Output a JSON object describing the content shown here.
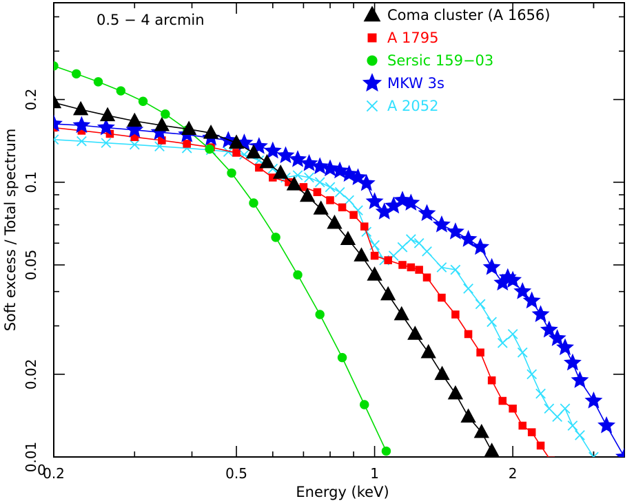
{
  "chart_data": {
    "type": "line",
    "title": "",
    "annotation": "0.5 − 4 arcmin",
    "xlabel": "Energy (keV)",
    "ylabel": "Soft excess / Total spectrum",
    "xscale": "log",
    "yscale": "log",
    "xlim": [
      0.2,
      3.5
    ],
    "ylim": [
      0.01,
      0.45
    ],
    "xticks": [
      {
        "value": 0.2,
        "label": "0.2"
      },
      {
        "value": 0.5,
        "label": "0.5"
      },
      {
        "value": 1,
        "label": "1"
      },
      {
        "value": 2,
        "label": "2"
      }
    ],
    "yticks": [
      {
        "value": 0.01,
        "label": "0.01"
      },
      {
        "value": 0.02,
        "label": "0.02"
      },
      {
        "value": 0.05,
        "label": "0.05"
      },
      {
        "value": 0.1,
        "label": "0.1"
      },
      {
        "value": 0.2,
        "label": "0.2"
      }
    ],
    "corner_label": "0",
    "legend_position": "top-right",
    "series": [
      {
        "name": "Coma cluster (A 1656)",
        "color": "#000000",
        "marker": "triangle",
        "x": [
          0.2,
          0.229,
          0.262,
          0.3,
          0.344,
          0.394,
          0.44,
          0.5,
          0.545,
          0.583,
          0.624,
          0.668,
          0.714,
          0.764,
          0.818,
          0.875,
          0.936,
          1.0,
          1.07,
          1.145,
          1.225,
          1.31,
          1.403,
          1.5,
          1.6,
          1.71,
          1.8
        ],
        "y": [
          0.195,
          0.184,
          0.175,
          0.167,
          0.161,
          0.156,
          0.151,
          0.139,
          0.128,
          0.118,
          0.108,
          0.098,
          0.089,
          0.08,
          0.071,
          0.062,
          0.054,
          0.046,
          0.039,
          0.033,
          0.028,
          0.024,
          0.02,
          0.017,
          0.014,
          0.0123,
          0.0105
        ]
      },
      {
        "name": "A 1795",
        "color": "#ff0000",
        "marker": "square",
        "x": [
          0.2,
          0.23,
          0.265,
          0.3,
          0.344,
          0.39,
          0.44,
          0.5,
          0.56,
          0.6,
          0.65,
          0.7,
          0.75,
          0.8,
          0.85,
          0.9,
          0.95,
          1.0,
          1.07,
          1.15,
          1.2,
          1.25,
          1.3,
          1.4,
          1.5,
          1.6,
          1.7,
          1.8,
          1.9,
          2.0,
          2.1,
          2.2,
          2.3,
          2.42
        ],
        "y": [
          0.158,
          0.154,
          0.15,
          0.146,
          0.142,
          0.138,
          0.134,
          0.128,
          0.113,
          0.104,
          0.1,
          0.096,
          0.092,
          0.086,
          0.081,
          0.076,
          0.069,
          0.054,
          0.052,
          0.05,
          0.049,
          0.048,
          0.045,
          0.038,
          0.033,
          0.028,
          0.024,
          0.019,
          0.016,
          0.015,
          0.013,
          0.0123,
          0.011,
          0.0097
        ]
      },
      {
        "name": "Sersic 159−03",
        "color": "#00dd00",
        "marker": "circle",
        "x": [
          0.2,
          0.224,
          0.25,
          0.28,
          0.313,
          0.35,
          0.391,
          0.437,
          0.488,
          0.545,
          0.609,
          0.68,
          0.76,
          0.85,
          0.95,
          1.06
        ],
        "y": [
          0.265,
          0.248,
          0.232,
          0.215,
          0.197,
          0.177,
          0.155,
          0.132,
          0.108,
          0.084,
          0.063,
          0.046,
          0.033,
          0.023,
          0.0155,
          0.0105
        ]
      },
      {
        "name": "MKW 3s",
        "color": "#0000ee",
        "marker": "star",
        "x": [
          0.2,
          0.23,
          0.26,
          0.3,
          0.34,
          0.39,
          0.44,
          0.48,
          0.52,
          0.56,
          0.6,
          0.64,
          0.68,
          0.72,
          0.76,
          0.8,
          0.84,
          0.88,
          0.92,
          0.96,
          1.0,
          1.05,
          1.1,
          1.15,
          1.2,
          1.3,
          1.4,
          1.5,
          1.6,
          1.7,
          1.8,
          1.9,
          1.95,
          2.0,
          2.1,
          2.2,
          2.3,
          2.4,
          2.5,
          2.6,
          2.7,
          2.8,
          3.0,
          3.2,
          3.5
        ],
        "y": [
          0.163,
          0.161,
          0.158,
          0.155,
          0.152,
          0.149,
          0.145,
          0.142,
          0.139,
          0.135,
          0.13,
          0.125,
          0.121,
          0.117,
          0.114,
          0.112,
          0.11,
          0.107,
          0.104,
          0.099,
          0.085,
          0.078,
          0.082,
          0.086,
          0.084,
          0.077,
          0.07,
          0.066,
          0.062,
          0.058,
          0.049,
          0.043,
          0.045,
          0.044,
          0.04,
          0.037,
          0.033,
          0.029,
          0.027,
          0.025,
          0.022,
          0.019,
          0.016,
          0.013,
          0.01
        ]
      },
      {
        "name": "A 2052",
        "color": "#33e0ff",
        "marker": "cross",
        "x": [
          0.2,
          0.23,
          0.26,
          0.3,
          0.34,
          0.39,
          0.44,
          0.48,
          0.52,
          0.56,
          0.6,
          0.64,
          0.68,
          0.72,
          0.76,
          0.8,
          0.84,
          0.88,
          0.92,
          0.96,
          1.0,
          1.05,
          1.1,
          1.15,
          1.2,
          1.25,
          1.3,
          1.4,
          1.5,
          1.6,
          1.7,
          1.8,
          1.9,
          2.0,
          2.1,
          2.2,
          2.3,
          2.4,
          2.5,
          2.6,
          2.7,
          2.8,
          3.0
        ],
        "y": [
          0.143,
          0.141,
          0.139,
          0.137,
          0.135,
          0.133,
          0.131,
          0.129,
          0.126,
          0.12,
          0.112,
          0.104,
          0.106,
          0.104,
          0.1,
          0.096,
          0.092,
          0.086,
          0.079,
          0.066,
          0.059,
          0.052,
          0.054,
          0.058,
          0.062,
          0.06,
          0.056,
          0.049,
          0.048,
          0.041,
          0.036,
          0.031,
          0.026,
          0.028,
          0.024,
          0.02,
          0.017,
          0.015,
          0.014,
          0.015,
          0.013,
          0.012,
          0.01
        ]
      }
    ]
  }
}
